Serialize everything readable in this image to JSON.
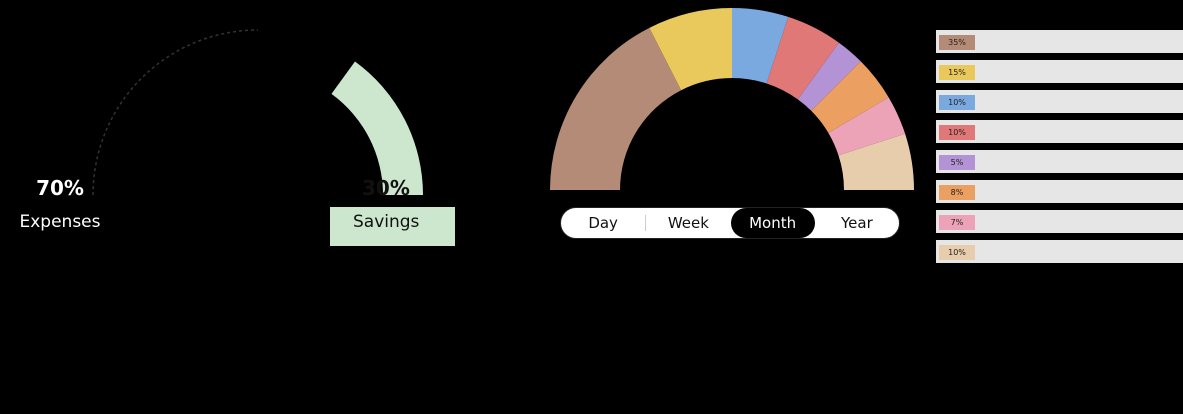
{
  "left_gauge": {
    "expenses": {
      "percent": "70%",
      "label": "Expenses",
      "color": "#000000"
    },
    "savings": {
      "percent": "30%",
      "label": "Savings",
      "color": "#cde7cf"
    }
  },
  "tabs": [
    {
      "label": "Day",
      "active": false
    },
    {
      "label": "Week",
      "active": false
    },
    {
      "label": "Month",
      "active": true
    },
    {
      "label": "Year",
      "active": false
    }
  ],
  "legend": [
    {
      "label": "35%",
      "color": "#b48b76"
    },
    {
      "label": "15%",
      "color": "#eac95c"
    },
    {
      "label": "10%",
      "color": "#79a9de"
    },
    {
      "label": "10%",
      "color": "#e07878"
    },
    {
      "label": "5%",
      "color": "#b393d6"
    },
    {
      "label": "8%",
      "color": "#eba062"
    },
    {
      "label": "7%",
      "color": "#eca3b8"
    },
    {
      "label": "10%",
      "color": "#e8cdad"
    }
  ],
  "chart_data": [
    {
      "type": "pie",
      "variant": "semicircle-gauge",
      "categories": [
        "Expenses",
        "Savings"
      ],
      "values": [
        70,
        30
      ],
      "colors": [
        "#000000",
        "#cde7cf"
      ]
    },
    {
      "type": "pie",
      "variant": "semicircle-donut",
      "values": [
        35,
        15,
        10,
        10,
        5,
        8,
        7,
        10
      ],
      "colors": [
        "#b48b76",
        "#eac95c",
        "#79a9de",
        "#e07878",
        "#b393d6",
        "#eba062",
        "#eca3b8",
        "#e8cdad"
      ],
      "selected_period": "Month"
    }
  ]
}
